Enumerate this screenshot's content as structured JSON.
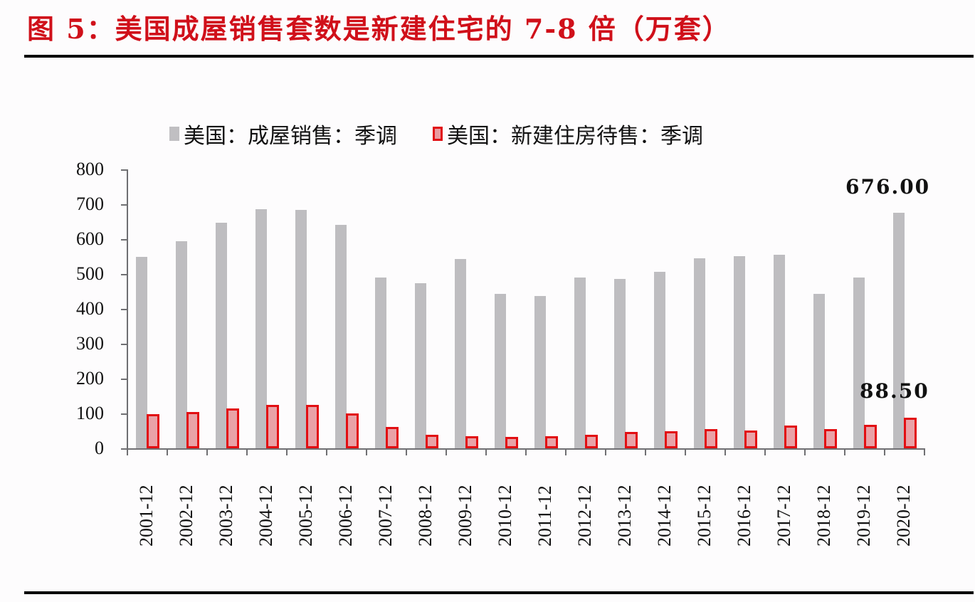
{
  "figure": {
    "title": "图 5：美国成屋销售套数是新建住宅的 7-8 倍（万套）"
  },
  "legend": {
    "items": [
      {
        "label": "美国：成屋销售：季调",
        "color": "#bebdc0",
        "style": "solid"
      },
      {
        "label": "美国：新建住房待售：季调",
        "color": "#e20e12",
        "style": "outlined-pink-fill"
      }
    ]
  },
  "annotations": [
    {
      "text": "676.00",
      "series": "美国：成屋销售：季调",
      "category": "2020-12"
    },
    {
      "text": "88.50",
      "series": "美国：新建住房待售：季调",
      "category": "2020-12"
    }
  ],
  "chart_data": {
    "type": "bar",
    "title": "图 5：美国成屋销售套数是新建住宅的 7-8 倍（万套）",
    "xlabel": "",
    "ylabel": "万套",
    "ylim": [
      0,
      800
    ],
    "yticks": [
      0,
      100,
      200,
      300,
      400,
      500,
      600,
      700,
      800
    ],
    "grid": false,
    "legend_position": "top",
    "categories": [
      "2001-12",
      "2002-12",
      "2003-12",
      "2004-12",
      "2005-12",
      "2006-12",
      "2007-12",
      "2008-12",
      "2009-12",
      "2010-12",
      "2011-12",
      "2012-12",
      "2013-12",
      "2014-12",
      "2015-12",
      "2016-12",
      "2017-12",
      "2018-12",
      "2019-12",
      "2020-12"
    ],
    "series": [
      {
        "name": "美国：成屋销售：季调",
        "color": "#bebdc0",
        "values": [
          549,
          594,
          647,
          686,
          684,
          641,
          490,
          473,
          543,
          443,
          437,
          490,
          486,
          506,
          545,
          551,
          555,
          443,
          490,
          676
        ]
      },
      {
        "name": "美国：新建住房待售：季调",
        "color": "#e20e12",
        "values": [
          98,
          104,
          114,
          124,
          124,
          100,
          61,
          38,
          35,
          32,
          35,
          38,
          46,
          49,
          55,
          52,
          65,
          55,
          68,
          88.5
        ]
      }
    ],
    "data_labels": [
      {
        "series": 0,
        "category": "2020-12",
        "text": "676.00"
      },
      {
        "series": 1,
        "category": "2020-12",
        "text": "88.50"
      }
    ]
  }
}
